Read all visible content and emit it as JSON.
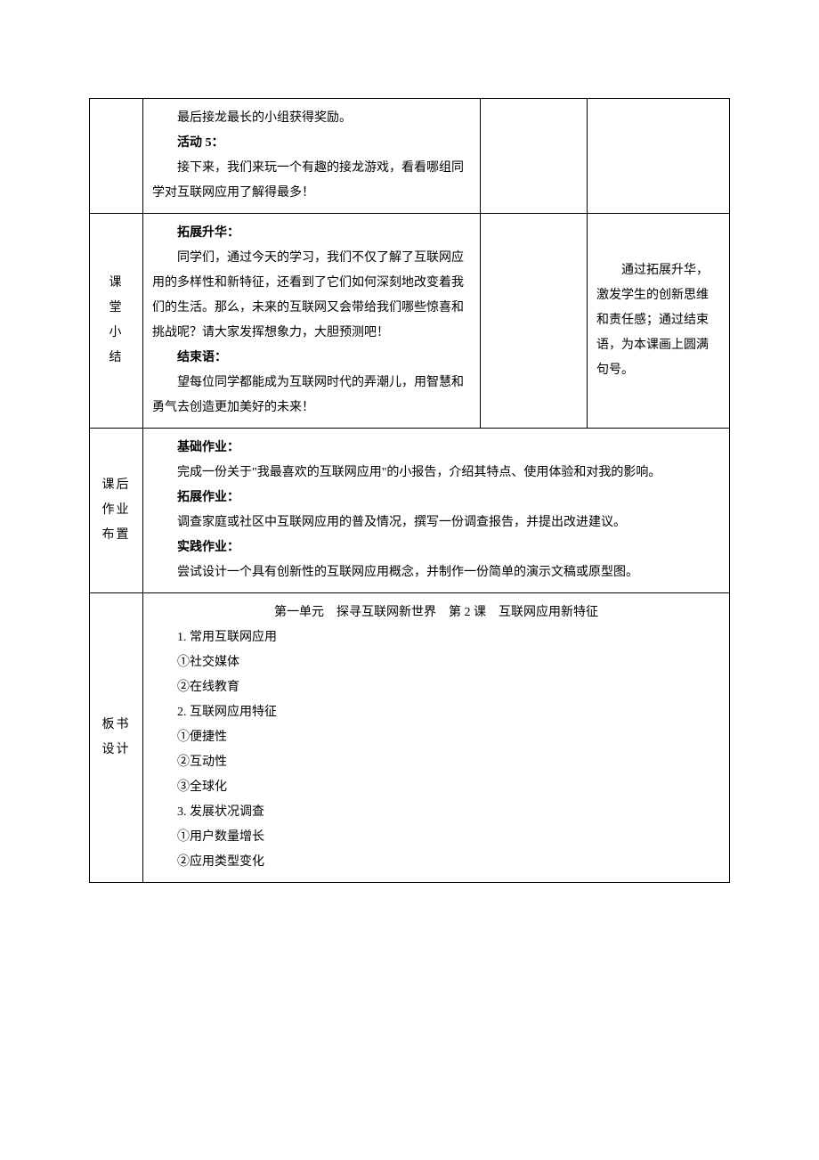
{
  "row1": {
    "label": "",
    "content": {
      "p1": "最后接龙最长的小组获得奖励。",
      "h1": "活动 5：",
      "p2": "接下来，我们来玩一个有趣的接龙游戏，看看哪组同学对互联网应用了解得最多！"
    },
    "mid": "",
    "right": ""
  },
  "row2": {
    "label": "课堂小结",
    "content": {
      "h1": "拓展升华：",
      "p1": "同学们，通过今天的学习，我们不仅了解了互联网应用的多样性和新特征，还看到了它们如何深刻地改变着我们的生活。那么，未来的互联网又会带给我们哪些惊喜和挑战呢？请大家发挥想象力，大胆预测吧！",
      "h2": "结束语：",
      "p2": "望每位同学都能成为互联网时代的弄潮儿，用智慧和勇气去创造更加美好的未来！"
    },
    "mid": "",
    "right": "通过拓展升华，激发学生的创新思维和责任感；通过结束语，为本课画上圆满句号。"
  },
  "row3": {
    "label": "课后作业布置",
    "content": {
      "h1": "基础作业：",
      "p1": "完成一份关于\"我最喜欢的互联网应用\"的小报告，介绍其特点、使用体验和对我的影响。",
      "h2": "拓展作业：",
      "p2": "调查家庭或社区中互联网应用的普及情况，撰写一份调查报告，并提出改进建议。",
      "h3": "实践作业：",
      "p3": "尝试设计一个具有创新性的互联网应用概念，并制作一份简单的演示文稿或原型图。"
    }
  },
  "row4": {
    "label": "板书设计",
    "content": {
      "header": "第一单元　探寻互联网新世界　第 2 课　互联网应用新特征",
      "items": [
        "1. 常用互联网应用",
        "①社交媒体",
        "②在线教育",
        "2. 互联网应用特征",
        "①便捷性",
        "②互动性",
        "③全球化",
        "3. 发展状况调查",
        "①用户数量增长",
        "②应用类型变化"
      ]
    }
  }
}
